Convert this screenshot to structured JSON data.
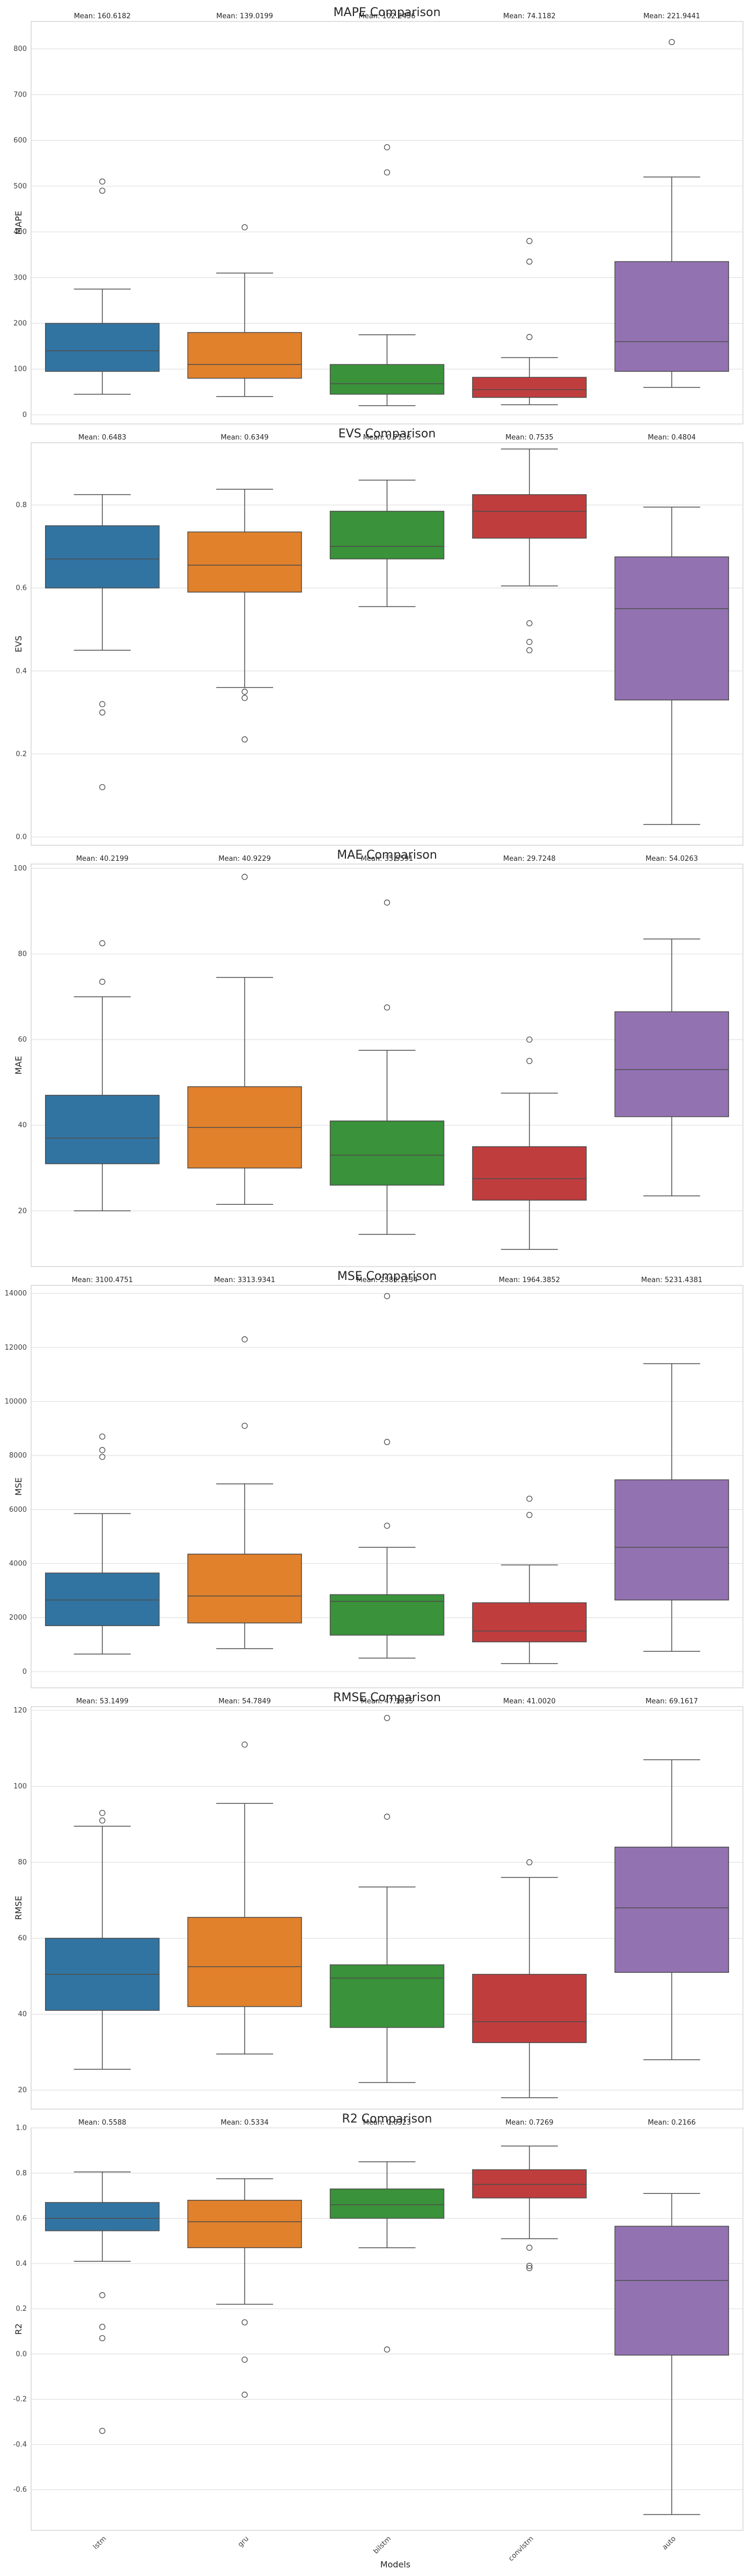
{
  "xlabel": "Models",
  "models": [
    "lstm",
    "gru",
    "bilstm",
    "convlstm",
    "auto"
  ],
  "colors": [
    "#3274a1",
    "#e1812c",
    "#3a923a",
    "#c03d3e",
    "#9372b2"
  ],
  "chart_data": [
    {
      "type": "box",
      "title": "MAPE Comparison",
      "ylabel": "MAPE",
      "ylim": [
        -20,
        860
      ],
      "yticks": [
        0,
        100,
        200,
        300,
        400,
        500,
        600,
        700,
        800
      ],
      "means": [
        "Mean: 160.6182",
        "Mean: 139.0199",
        "Mean: 102.2456",
        "Mean: 74.1182",
        "Mean: 221.9441"
      ],
      "boxes": [
        {
          "whislo": 45,
          "q1": 95,
          "med": 140,
          "q3": 200,
          "whishi": 275,
          "fliers": [
            490,
            510
          ]
        },
        {
          "whislo": 40,
          "q1": 80,
          "med": 110,
          "q3": 180,
          "whishi": 310,
          "fliers": [
            410
          ]
        },
        {
          "whislo": 20,
          "q1": 45,
          "med": 68,
          "q3": 110,
          "whishi": 175,
          "fliers": [
            530,
            585
          ]
        },
        {
          "whislo": 22,
          "q1": 38,
          "med": 55,
          "q3": 82,
          "whishi": 125,
          "fliers": [
            170,
            335,
            380
          ]
        },
        {
          "whislo": 60,
          "q1": 95,
          "med": 160,
          "q3": 335,
          "whishi": 520,
          "fliers": [
            815
          ]
        }
      ]
    },
    {
      "type": "box",
      "title": "EVS Comparison",
      "ylabel": "EVS",
      "ylim": [
        -0.02,
        0.95
      ],
      "yticks": [
        0.0,
        0.2,
        0.4,
        0.6,
        0.8
      ],
      "means": [
        "Mean: 0.6483",
        "Mean: 0.6349",
        "Mean: 0.7136",
        "Mean: 0.7535",
        "Mean: 0.4804"
      ],
      "boxes": [
        {
          "whislo": 0.45,
          "q1": 0.6,
          "med": 0.67,
          "q3": 0.75,
          "whishi": 0.825,
          "fliers": [
            0.12,
            0.3,
            0.32
          ]
        },
        {
          "whislo": 0.36,
          "q1": 0.59,
          "med": 0.655,
          "q3": 0.735,
          "whishi": 0.838,
          "fliers": [
            0.235,
            0.335,
            0.35
          ]
        },
        {
          "whislo": 0.555,
          "q1": 0.67,
          "med": 0.7,
          "q3": 0.785,
          "whishi": 0.86,
          "fliers": []
        },
        {
          "whislo": 0.605,
          "q1": 0.72,
          "med": 0.785,
          "q3": 0.825,
          "whishi": 0.935,
          "fliers": [
            0.45,
            0.47,
            0.515
          ]
        },
        {
          "whislo": 0.03,
          "q1": 0.33,
          "med": 0.55,
          "q3": 0.675,
          "whishi": 0.795,
          "fliers": []
        }
      ]
    },
    {
      "type": "box",
      "title": "MAE Comparison",
      "ylabel": "MAE",
      "ylim": [
        7,
        101
      ],
      "yticks": [
        20,
        40,
        60,
        80,
        100
      ],
      "means": [
        "Mean: 40.2199",
        "Mean: 40.9229",
        "Mean: 35.5591",
        "Mean: 29.7248",
        "Mean: 54.0263"
      ],
      "boxes": [
        {
          "whislo": 20,
          "q1": 31,
          "med": 37,
          "q3": 47,
          "whishi": 70,
          "fliers": [
            73.5,
            82.5
          ]
        },
        {
          "whislo": 21.5,
          "q1": 30,
          "med": 39.5,
          "q3": 49,
          "whishi": 74.5,
          "fliers": [
            98
          ]
        },
        {
          "whislo": 14.5,
          "q1": 26,
          "med": 33,
          "q3": 41,
          "whishi": 57.5,
          "fliers": [
            67.5,
            92
          ]
        },
        {
          "whislo": 11,
          "q1": 22.5,
          "med": 27.5,
          "q3": 35,
          "whishi": 47.5,
          "fliers": [
            55,
            60
          ]
        },
        {
          "whislo": 23.5,
          "q1": 42,
          "med": 53,
          "q3": 66.5,
          "whishi": 83.5,
          "fliers": []
        }
      ]
    },
    {
      "type": "box",
      "title": "MSE Comparison",
      "ylabel": "MSE",
      "ylim": [
        -600,
        14300
      ],
      "yticks": [
        0,
        2000,
        4000,
        6000,
        8000,
        10000,
        12000,
        14000
      ],
      "means": [
        "Mean: 3100.4751",
        "Mean: 3313.9341",
        "Mean: 2580.1234",
        "Mean: 1964.3852",
        "Mean: 5231.4381"
      ],
      "boxes": [
        {
          "whislo": 650,
          "q1": 1700,
          "med": 2650,
          "q3": 3650,
          "whishi": 5850,
          "fliers": [
            7950,
            8200,
            8700
          ]
        },
        {
          "whislo": 850,
          "q1": 1800,
          "med": 2800,
          "q3": 4350,
          "whishi": 6950,
          "fliers": [
            9100,
            12300
          ]
        },
        {
          "whislo": 500,
          "q1": 1350,
          "med": 2600,
          "q3": 2850,
          "whishi": 4600,
          "fliers": [
            5400,
            8500,
            13900
          ]
        },
        {
          "whislo": 300,
          "q1": 1100,
          "med": 1500,
          "q3": 2550,
          "whishi": 3950,
          "fliers": [
            5800,
            6400
          ]
        },
        {
          "whislo": 750,
          "q1": 2650,
          "med": 4600,
          "q3": 7100,
          "whishi": 11400,
          "fliers": []
        }
      ]
    },
    {
      "type": "box",
      "title": "RMSE Comparison",
      "ylabel": "RMSE",
      "ylim": [
        15,
        121
      ],
      "yticks": [
        20,
        40,
        60,
        80,
        100,
        120
      ],
      "means": [
        "Mean: 53.1499",
        "Mean: 54.7849",
        "Mean: 47.1035",
        "Mean: 41.0020",
        "Mean: 69.1617"
      ],
      "boxes": [
        {
          "whislo": 25.5,
          "q1": 41,
          "med": 50.5,
          "q3": 60,
          "whishi": 89.5,
          "fliers": [
            91,
            93
          ]
        },
        {
          "whislo": 29.5,
          "q1": 42,
          "med": 52.5,
          "q3": 65.5,
          "whishi": 95.5,
          "fliers": [
            111
          ]
        },
        {
          "whislo": 22,
          "q1": 36.5,
          "med": 49.5,
          "q3": 53,
          "whishi": 73.5,
          "fliers": [
            92,
            118
          ]
        },
        {
          "whislo": 18,
          "q1": 32.5,
          "med": 38,
          "q3": 50.5,
          "whishi": 76,
          "fliers": [
            80
          ]
        },
        {
          "whislo": 28,
          "q1": 51,
          "med": 68,
          "q3": 84,
          "whishi": 107,
          "fliers": []
        }
      ]
    },
    {
      "type": "box",
      "title": "R2 Comparison",
      "ylabel": "R2",
      "ylim": [
        -0.78,
        1.0
      ],
      "yticks": [
        -0.6,
        -0.4,
        -0.2,
        0.0,
        0.2,
        0.4,
        0.6,
        0.8,
        1.0
      ],
      "means": [
        "Mean: 0.5588",
        "Mean: 0.5334",
        "Mean: 0.6323",
        "Mean: 0.7269",
        "Mean: 0.2166"
      ],
      "boxes": [
        {
          "whislo": 0.41,
          "q1": 0.545,
          "med": 0.6,
          "q3": 0.67,
          "whishi": 0.805,
          "fliers": [
            -0.34,
            0.07,
            0.12,
            0.26
          ]
        },
        {
          "whislo": 0.22,
          "q1": 0.47,
          "med": 0.585,
          "q3": 0.68,
          "whishi": 0.775,
          "fliers": [
            -0.18,
            -0.025,
            0.14
          ]
        },
        {
          "whislo": 0.47,
          "q1": 0.6,
          "med": 0.66,
          "q3": 0.73,
          "whishi": 0.85,
          "fliers": [
            0.02
          ]
        },
        {
          "whislo": 0.51,
          "q1": 0.69,
          "med": 0.75,
          "q3": 0.815,
          "whishi": 0.92,
          "fliers": [
            0.38,
            0.39,
            0.47
          ]
        },
        {
          "whislo": -0.71,
          "q1": -0.005,
          "med": 0.325,
          "q3": 0.565,
          "whishi": 0.71,
          "fliers": []
        }
      ]
    }
  ]
}
